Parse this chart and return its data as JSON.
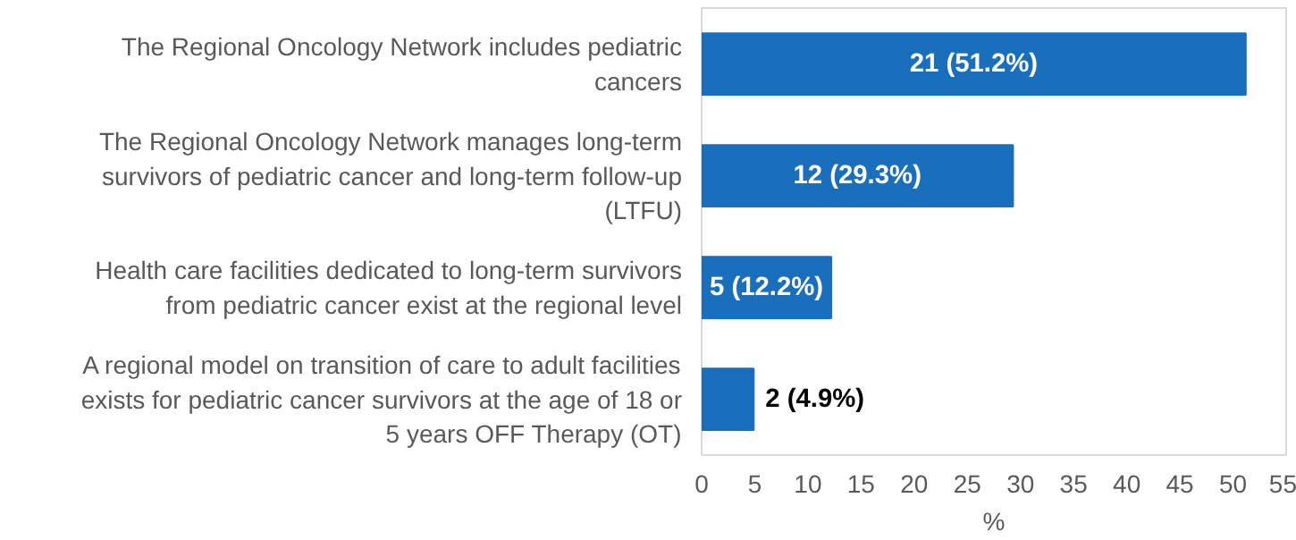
{
  "chart_data": {
    "type": "bar",
    "orientation": "horizontal",
    "categories": [
      "The Regional Oncology Network includes pediatric\ncancers",
      "The Regional Oncology Network manages long-term\nsurvivors of pediatric cancer and long-term follow-up\n(LTFU)",
      "Health care facilities dedicated to long-term survivors\nfrom pediatric cancer exist at the regional level",
      "A regional model on transition of care to adult facilities\nexists for pediatric cancer survivors at the age of 18 or\n5 years OFF Therapy (OT)"
    ],
    "values": [
      51.2,
      29.3,
      12.2,
      4.9
    ],
    "value_labels": [
      "21 (51.2%)",
      "12 (29.3%)",
      "5 (12.2%)",
      "2 (4.9%)"
    ],
    "color": "#1a6fbd",
    "xlabel": "%",
    "xlim": [
      0,
      55
    ],
    "xticks": [
      0,
      5,
      10,
      15,
      20,
      25,
      30,
      35,
      40,
      45,
      50,
      55
    ],
    "grid": false
  }
}
